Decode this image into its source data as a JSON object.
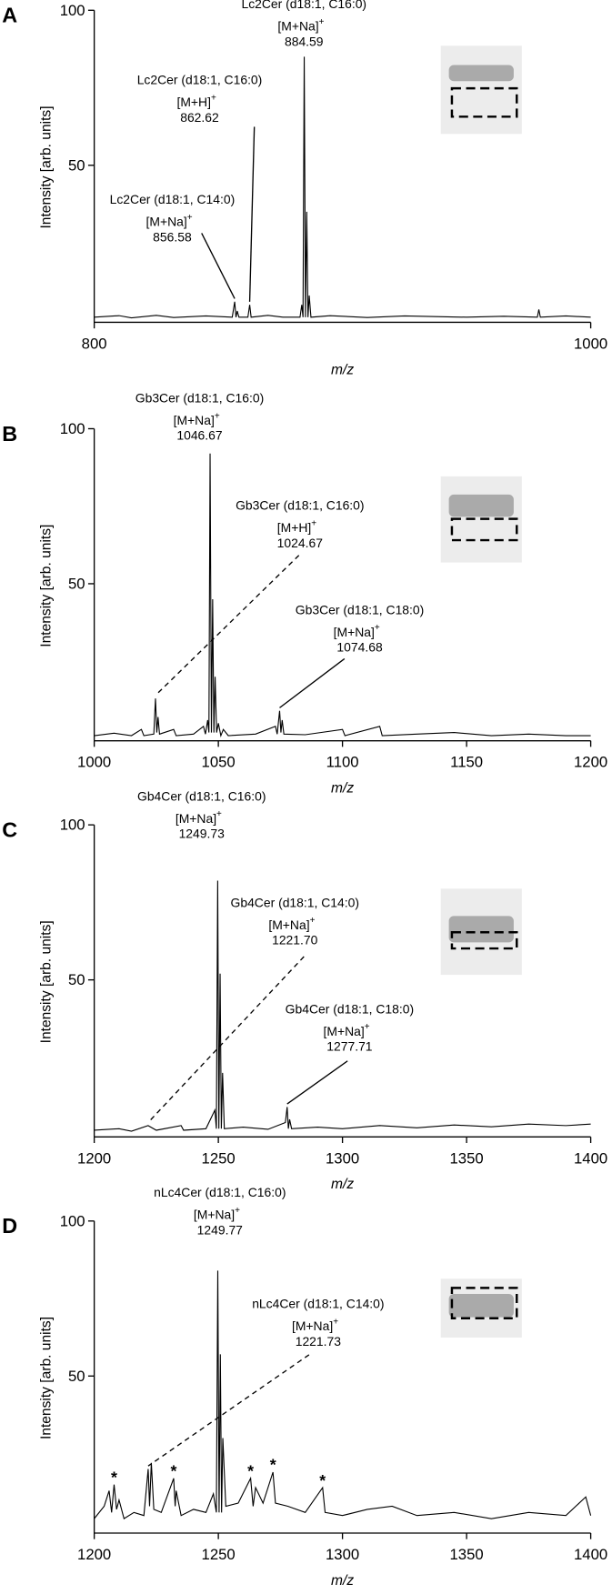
{
  "chart_data": [
    {
      "type": "line",
      "panel": "A",
      "ylabel": "Intensity [arb. units]",
      "xlabel": "m/z",
      "color": "#000000",
      "xlim": [
        800,
        1000
      ],
      "xticks": [
        800,
        1000
      ],
      "ylim": [
        0,
        100
      ],
      "yticks": [
        50,
        100
      ],
      "x": [
        800,
        810,
        815,
        825,
        832,
        845,
        855.6,
        856.58,
        857.1,
        857.6,
        858.3,
        861.9,
        862.62,
        863.2,
        870,
        876,
        882.9,
        883.6,
        884.1,
        884.59,
        885.1,
        885.6,
        886.1,
        886.6,
        887.3,
        895,
        910,
        925,
        950,
        965,
        978.5,
        979.1,
        979.7,
        990,
        1000
      ],
      "values": [
        1,
        1.5,
        0.8,
        1.6,
        0.9,
        1.4,
        1,
        6,
        1,
        3,
        1,
        1,
        5,
        1,
        1.6,
        1,
        1,
        5,
        1,
        85,
        1,
        35,
        1,
        8,
        1,
        1.5,
        0.9,
        1.4,
        1,
        1.3,
        1,
        3.5,
        1,
        1.4,
        1
      ],
      "annotations": [
        {
          "name": "Lc2Cer (d18:1, C16:0)",
          "ion": "[M+Na]",
          "charge": "+",
          "mz": 884.59
        },
        {
          "name": "Lc2Cer (d18:1, C16:0)",
          "ion": "[M+H]",
          "charge": "+",
          "mz": 862.62,
          "line": "solid"
        },
        {
          "name": "Lc2Cer (d18:1, C14:0)",
          "ion": "[M+Na]",
          "charge": "+",
          "mz": 856.58,
          "line": "solid"
        }
      ]
    },
    {
      "type": "line",
      "panel": "B",
      "ylabel": "Intensity [arb. units]",
      "xlabel": "m/z",
      "color": "#000000",
      "xlim": [
        1000,
        1200
      ],
      "xticks": [
        1000,
        1050,
        1100,
        1150,
        1200
      ],
      "ylim": [
        0,
        100
      ],
      "yticks": [
        50,
        100
      ],
      "x": [
        1000,
        1008,
        1015,
        1019,
        1020,
        1024,
        1024.67,
        1025.2,
        1025.7,
        1026.3,
        1032,
        1033,
        1040,
        1044,
        1044.8,
        1045.7,
        1046.2,
        1046.67,
        1047.2,
        1047.7,
        1048.2,
        1048.7,
        1049.3,
        1050,
        1051,
        1052,
        1054,
        1065,
        1073,
        1073.7,
        1074.68,
        1075.2,
        1075.7,
        1076.4,
        1085,
        1100,
        1101,
        1115,
        1116,
        1130,
        1145,
        1160,
        1175,
        1190,
        1200
      ],
      "values": [
        1,
        1.8,
        1,
        3,
        1,
        1.5,
        13,
        2,
        7,
        1.5,
        3,
        1,
        1.5,
        4,
        1.5,
        6,
        2,
        92,
        2,
        45,
        2,
        20,
        2,
        5,
        1,
        3,
        1,
        1.5,
        4,
        1.5,
        9,
        2,
        6,
        1.5,
        1.3,
        3,
        1,
        4,
        1,
        1.5,
        2,
        1,
        1.5,
        1,
        1
      ],
      "annotations": [
        {
          "name": "Gb3Cer (d18:1, C16:0)",
          "ion": "[M+Na]",
          "charge": "+",
          "mz": 1046.67
        },
        {
          "name": "Gb3Cer (d18:1, C16:0)",
          "ion": "[M+H]",
          "charge": "+",
          "mz": 1024.67,
          "line": "dashed"
        },
        {
          "name": "Gb3Cer (d18:1, C18:0)",
          "ion": "[M+Na]",
          "charge": "+",
          "mz": 1074.68,
          "line": "solid"
        }
      ]
    },
    {
      "type": "line",
      "panel": "C",
      "ylabel": "Intensity [arb. units]",
      "xlabel": "m/z",
      "color": "#000000",
      "xlim": [
        1200,
        1400
      ],
      "xticks": [
        1200,
        1250,
        1300,
        1350,
        1400
      ],
      "ylim": [
        0,
        100
      ],
      "yticks": [
        50,
        100
      ],
      "x": [
        1200,
        1210,
        1215,
        1221.7,
        1225,
        1235,
        1236,
        1245,
        1248.6,
        1249.2,
        1249.73,
        1250.2,
        1250.7,
        1251.2,
        1251.7,
        1252.4,
        1260,
        1270,
        1277,
        1277.71,
        1278.2,
        1278.7,
        1279.5,
        1290,
        1300,
        1315,
        1330,
        1345,
        1360,
        1375,
        1390,
        1400
      ],
      "values": [
        1.5,
        2,
        1.2,
        3,
        1.5,
        3,
        1.5,
        2,
        8,
        2,
        82,
        2,
        52,
        2,
        20,
        2,
        2.5,
        1.8,
        4,
        9,
        2,
        5,
        2,
        2.5,
        2,
        3,
        2.3,
        3.2,
        2.6,
        3.5,
        3,
        3.5
      ],
      "annotations": [
        {
          "name": "Gb4Cer (d18:1, C16:0)",
          "ion": "[M+Na]",
          "charge": "+",
          "mz": 1249.73
        },
        {
          "name": "Gb4Cer (d18:1, C14:0)",
          "ion": "[M+Na]",
          "charge": "+",
          "mz": {
            "value": 1221.7,
            "label": "1221.70"
          },
          "line": "dashed"
        },
        {
          "name": "Gb4Cer (d18:1, C18:0)",
          "ion": "[M+Na]",
          "charge": "+",
          "mz": 1277.71,
          "line": "solid"
        }
      ]
    },
    {
      "type": "line",
      "panel": "D",
      "ylabel": "Intensity [arb. units]",
      "xlabel": "m/z",
      "color": "#000000",
      "xlim": [
        1200,
        1400
      ],
      "xticks": [
        1200,
        1250,
        1300,
        1350,
        1400
      ],
      "ylim": [
        0,
        100
      ],
      "yticks": [
        50,
        100
      ],
      "x": [
        1200,
        1204,
        1206,
        1207,
        1208,
        1209,
        1210,
        1212,
        1216,
        1220,
        1221.73,
        1222.3,
        1223,
        1224,
        1227,
        1232,
        1232.6,
        1233,
        1235,
        1240,
        1245,
        1248,
        1249.2,
        1249.77,
        1250.3,
        1250.8,
        1251.3,
        1251.8,
        1253,
        1258,
        1263,
        1264,
        1265,
        1268,
        1272,
        1273,
        1278,
        1285,
        1292,
        1293,
        1300,
        1310,
        1320,
        1330,
        1345,
        1360,
        1375,
        1390,
        1398,
        1400
      ],
      "values": [
        4,
        8,
        13,
        6,
        15,
        7,
        10,
        4,
        6,
        5,
        20,
        8,
        22,
        7,
        6,
        17,
        8,
        13,
        5,
        7,
        6,
        12,
        6,
        84,
        6,
        57,
        6,
        30,
        8,
        9,
        17,
        8,
        14,
        9,
        19,
        9,
        8,
        6,
        14,
        6,
        5,
        7,
        8,
        5,
        6,
        4,
        6,
        5,
        11,
        5
      ],
      "annotations": [
        {
          "name": "nLc4Cer (d18:1, C16:0)",
          "ion": "[M+Na]",
          "charge": "+",
          "mz": 1249.77
        },
        {
          "name": "nLc4Cer (d18:1, C14:0)",
          "ion": "[M+Na]",
          "charge": "+",
          "mz": 1221.73,
          "line": "dashed"
        }
      ],
      "asterisk": "*",
      "asterisk_x": [
        1208,
        1232,
        1263,
        1272,
        1292
      ]
    }
  ]
}
